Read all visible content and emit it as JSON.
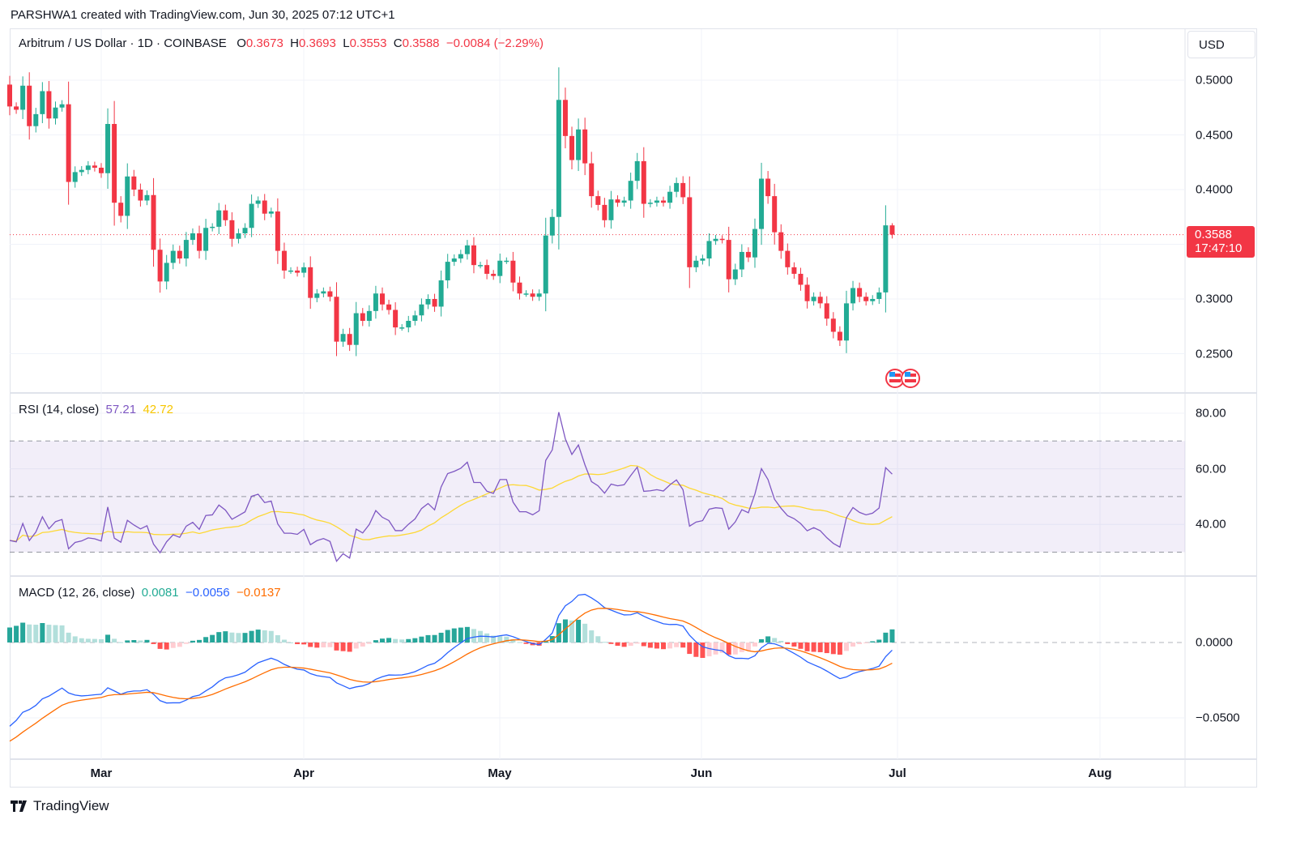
{
  "credit": "PARSHWA1 created with TradingView.com, Jun 30, 2025 07:12 UTC+1",
  "logo_text": "TradingView",
  "currency": "USD",
  "legend": {
    "symbol": "Arbitrum / US Dollar · 1D · COINBASE",
    "o_label": "O",
    "o": "0.3673",
    "h_label": "H",
    "h": "0.3693",
    "l_label": "L",
    "l": "0.3553",
    "c_label": "C",
    "c": "0.3588",
    "change": "−0.0084 (−2.29%)"
  },
  "last_price": {
    "price": "0.3588",
    "countdown": "17:47:10"
  },
  "rsi_legend": {
    "title": "RSI (14, close)",
    "rsi": "57.21",
    "ma": "42.72"
  },
  "macd_legend": {
    "title": "MACD (12, 26, close)",
    "hist": "0.0081",
    "macd": "−0.0056",
    "signal": "−0.0137"
  },
  "colors": {
    "up": "#22ab94",
    "down": "#f23645",
    "rsi": "#7e57c2",
    "rsi_ma": "#fdd835",
    "macd": "#2962ff",
    "signal": "#ff6d00",
    "hist_up_strong": "#26a69a",
    "hist_up_weak": "#b2dfdb",
    "hist_down_strong": "#ff5252",
    "hist_down_weak": "#ffcdd2"
  },
  "chart_data": {
    "type": "candlestick",
    "title": "Arbitrum / US Dollar · 1D · COINBASE",
    "x_range": [
      "Feb 15 2025",
      "Jun 30 2025"
    ],
    "time_ticks": [
      "Mar",
      "Apr",
      "May",
      "Jun",
      "Jul",
      "Aug"
    ],
    "price_ticks": [
      "0.5000",
      "0.4500",
      "0.4000",
      "0.3000",
      "0.2500"
    ],
    "price_tick_values": [
      0.5,
      0.45,
      0.4,
      0.3,
      0.25
    ],
    "first_open": 0.496,
    "last_candle": {
      "open": 0.3673,
      "high": 0.3693,
      "low": 0.3553,
      "close": 0.3588
    },
    "close": [
      0.476,
      0.473,
      0.495,
      0.458,
      0.469,
      0.49,
      0.465,
      0.475,
      0.478,
      0.407,
      0.416,
      0.418,
      0.422,
      0.42,
      0.415,
      0.46,
      0.388,
      0.376,
      0.412,
      0.4,
      0.39,
      0.395,
      0.345,
      0.316,
      0.333,
      0.344,
      0.337,
      0.354,
      0.36,
      0.344,
      0.365,
      0.366,
      0.381,
      0.372,
      0.355,
      0.36,
      0.365,
      0.387,
      0.39,
      0.378,
      0.38,
      0.344,
      0.326,
      0.326,
      0.324,
      0.329,
      0.301,
      0.305,
      0.307,
      0.302,
      0.261,
      0.268,
      0.258,
      0.287,
      0.28,
      0.289,
      0.305,
      0.295,
      0.29,
      0.274,
      0.274,
      0.28,
      0.285,
      0.295,
      0.3,
      0.293,
      0.317,
      0.334,
      0.337,
      0.341,
      0.349,
      0.331,
      0.331,
      0.323,
      0.321,
      0.335,
      0.335,
      0.315,
      0.305,
      0.305,
      0.302,
      0.305,
      0.358,
      0.375,
      0.482,
      0.449,
      0.427,
      0.455,
      0.424,
      0.394,
      0.386,
      0.372,
      0.391,
      0.388,
      0.39,
      0.408,
      0.426,
      0.387,
      0.388,
      0.39,
      0.388,
      0.398,
      0.406,
      0.393,
      0.329,
      0.335,
      0.337,
      0.353,
      0.355,
      0.354,
      0.318,
      0.327,
      0.343,
      0.338,
      0.364,
      0.41,
      0.394,
      0.361,
      0.344,
      0.329,
      0.323,
      0.313,
      0.298,
      0.302,
      0.296,
      0.282,
      0.27,
      0.262,
      0.296,
      0.31,
      0.302,
      0.298,
      0.3,
      0.306,
      0.3673,
      0.3588
    ],
    "rsi": {
      "length": 14,
      "ticks": [
        "80.00",
        "60.00",
        "40.00"
      ],
      "tick_values": [
        80,
        60,
        40
      ],
      "bands": [
        70,
        50,
        30
      ],
      "last": 57.21,
      "ma_last": 42.72
    },
    "macd": {
      "fast": 12,
      "slow": 26,
      "ticks": [
        "0.0000",
        "−0.0500"
      ],
      "tick_values": [
        0,
        -0.05
      ],
      "last_hist": 0.0081,
      "last_macd": -0.0056,
      "last_signal": -0.0137
    }
  }
}
